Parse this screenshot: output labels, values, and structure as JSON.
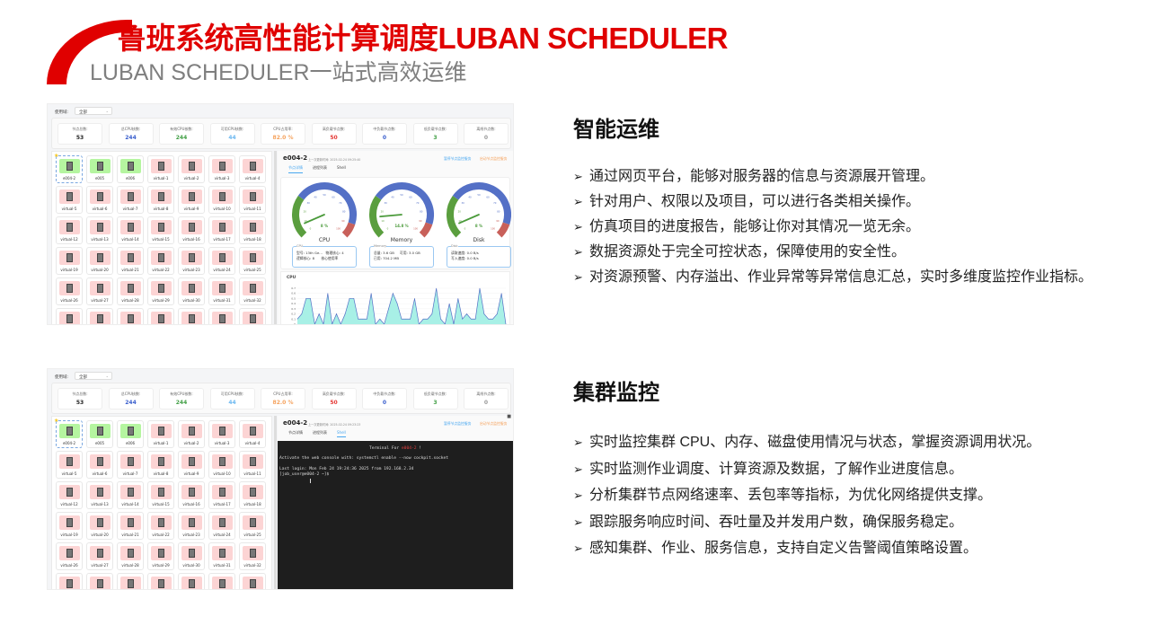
{
  "header": {
    "title": "鲁班系统高性能计算调度LUBAN SCHEDULER",
    "subtitle": "LUBAN SCHEDULER一站式高效运维"
  },
  "colors": {
    "brand": "#e00000",
    "online": "#b5f5a0",
    "busy": "#fcd4d4",
    "accent": "#4aa8f0",
    "orange": "#f5a25d"
  },
  "dashboards": [
    {
      "filter_label": "使用域:",
      "filter_value": "全部",
      "stats": [
        {
          "label": "节点总数:",
          "value": "53",
          "color": "#222222"
        },
        {
          "label": "总CPU核数:",
          "value": "244",
          "color": "#3a5fcd"
        },
        {
          "label": "有效CPU核数:",
          "value": "244",
          "color": "#43a047"
        },
        {
          "label": "可用CPU核数:",
          "value": "44",
          "color": "#6cb8f0"
        },
        {
          "label": "CPU占用率:",
          "value": "82.0 %",
          "color": "#f5a25d"
        },
        {
          "label": "高负载节点数:",
          "value": "50",
          "color": "#e53935"
        },
        {
          "label": "中负载节点数:",
          "value": "0",
          "color": "#3a5fcd"
        },
        {
          "label": "低负载节点数:",
          "value": "3",
          "color": "#43a047"
        },
        {
          "label": "离线节点数:",
          "value": "0",
          "color": "#999999"
        }
      ],
      "nodes": [
        "e004-2",
        "e005",
        "e006",
        "virtual-1",
        "virtual-2",
        "virtual-3",
        "virtual-4",
        "virtual-5",
        "virtual-6",
        "virtual-7",
        "virtual-8",
        "virtual-9",
        "virtual-10",
        "virtual-11",
        "virtual-12",
        "virtual-13",
        "virtual-14",
        "virtual-15",
        "virtual-16",
        "virtual-17",
        "virtual-18",
        "virtual-19",
        "virtual-20",
        "virtual-21",
        "virtual-22",
        "virtual-23",
        "virtual-24",
        "virtual-25",
        "virtual-26",
        "virtual-27",
        "virtual-28",
        "virtual-29",
        "virtual-30",
        "virtual-31",
        "virtual-32"
      ],
      "online_nodes": 3,
      "detail": {
        "node": "e004-2",
        "last_update": "上一次更新时间: 2025-02-24 09:25:40",
        "link_pause": "暂停节点监控服务",
        "link_start": "启动节点监控服务",
        "tabs": [
          "节点详情",
          "进程列表",
          "Shell"
        ],
        "active_tab": 0,
        "gauges": [
          {
            "name": "CPU",
            "value": 8,
            "label": "8 %"
          },
          {
            "name": "Memory",
            "value": 14.8,
            "label": "14.8 %"
          },
          {
            "name": "Disk",
            "value": 8,
            "label": "8 %"
          }
        ],
        "info": [
          {
            "title": "CPU",
            "lines": [
              "型号: 13th Ge...   物理核心: 4",
              "逻辑核心: 8      核心使用率"
            ]
          },
          {
            "title": "Memory",
            "lines": [
              "总量: 3.6 GB     可用: 3.0 GB",
              "已用: 704.2 MB"
            ]
          },
          {
            "title": "Disk",
            "lines": [
              "读取速度: 0.0 B/s",
              "写入速度: 0.0 B/s"
            ]
          }
        ],
        "cpu_chart": {
          "title": "CPU",
          "type": "area",
          "ylim": [
            0,
            0.7
          ],
          "yticks": [
            "0",
            "0.1",
            "0.2",
            "0.3",
            "0.4",
            "0.5",
            "0.6",
            "0.7"
          ],
          "xticks": [
            "20:30:55",
            "20:31",
            "20:31:05",
            "20:31:10",
            "20:31:15",
            "20:31:20",
            "20:31:25",
            "20:31:30",
            "20:31:35",
            "20:31:40"
          ],
          "values": [
            0.1,
            0.2,
            0.5,
            0.5,
            0,
            0.2,
            0,
            0.6,
            0,
            0.2,
            0,
            0.2,
            0.5,
            0.5,
            0.1,
            0.1,
            0.1,
            0.6,
            0,
            0.1,
            0,
            0.3,
            0.6,
            0.4,
            0.1,
            0.1,
            0.1,
            0.5,
            0,
            0.1,
            0.1,
            0.2,
            0.7,
            0.1,
            0,
            0.4,
            0,
            0.5,
            0.1,
            0.2,
            0.1,
            0.1,
            0.7,
            0.2,
            0.1,
            0.1,
            0.2,
            0.6,
            0
          ]
        }
      }
    },
    {
      "filter_label": "使用域:",
      "filter_value": "全部",
      "stats": [
        {
          "label": "节点总数:",
          "value": "53",
          "color": "#222222"
        },
        {
          "label": "总CPU核数:",
          "value": "244",
          "color": "#3a5fcd"
        },
        {
          "label": "有效CPU核数:",
          "value": "244",
          "color": "#43a047"
        },
        {
          "label": "可用CPU核数:",
          "value": "44",
          "color": "#6cb8f0"
        },
        {
          "label": "CPU占用率:",
          "value": "82.0 %",
          "color": "#f5a25d"
        },
        {
          "label": "高负载节点数:",
          "value": "50",
          "color": "#e53935"
        },
        {
          "label": "中负载节点数:",
          "value": "0",
          "color": "#3a5fcd"
        },
        {
          "label": "低负载节点数:",
          "value": "3",
          "color": "#43a047"
        },
        {
          "label": "离线节点数:",
          "value": "0",
          "color": "#999999"
        }
      ],
      "nodes": [
        "e004-2",
        "e005",
        "e006",
        "virtual-1",
        "virtual-2",
        "virtual-3",
        "virtual-4",
        "virtual-5",
        "virtual-6",
        "virtual-7",
        "virtual-8",
        "virtual-9",
        "virtual-10",
        "virtual-11",
        "virtual-12",
        "virtual-13",
        "virtual-14",
        "virtual-15",
        "virtual-16",
        "virtual-17",
        "virtual-18",
        "virtual-19",
        "virtual-20",
        "virtual-21",
        "virtual-22",
        "virtual-23",
        "virtual-24",
        "virtual-25",
        "virtual-26",
        "virtual-27",
        "virtual-28",
        "virtual-29",
        "virtual-30",
        "virtual-31",
        "virtual-32"
      ],
      "online_nodes": 3,
      "detail": {
        "node": "e004-2",
        "last_update": "上一次更新时间: 2025-02-24 09:23:23",
        "link_pause": "暂停节点监控服务",
        "link_start": "启动节点监控服务",
        "tabs": [
          "节点详情",
          "进程列表",
          "Shell"
        ],
        "active_tab": 2,
        "terminal": {
          "title_prefix": "Terminal For ",
          "title_node": "e004-2",
          "title_suffix": " !",
          "lines": [
            "Activate the web console with: systemctl enable --now cockpit.socket",
            "",
            "Last login: Mon Feb 24 19:24:36 2025 from 192.168.2.34",
            "[job_user@e004-2 ~]$ "
          ]
        }
      }
    }
  ],
  "sections": [
    {
      "heading": "智能运维",
      "bullets": [
        "通过网页平台，能够对服务器的信息与资源展开管理。",
        "针对用户、权限以及项目，可以进行各类相关操作。",
        "仿真项目的进度报告，能够让你对其情况一览无余。",
        "数据资源处于完全可控状态，保障使用的安全性。",
        "对资源预警、内存溢出、作业异常等异常信息汇总，实时多维度监控作业指标。"
      ]
    },
    {
      "heading": "集群监控",
      "bullets": [
        "实时监控集群 CPU、内存、磁盘使用情况与状态，掌握资源调用状况。",
        "实时监测作业调度、计算资源及数据，了解作业进度信息。",
        "分析集群节点网络速率、丢包率等指标，为优化网络提供支撑。",
        "跟踪服务响应时间、吞吐量及并发用户数，确保服务稳定。",
        "感知集群、作业、服务信息，支持自定义告警阈值策略设置。"
      ]
    }
  ]
}
